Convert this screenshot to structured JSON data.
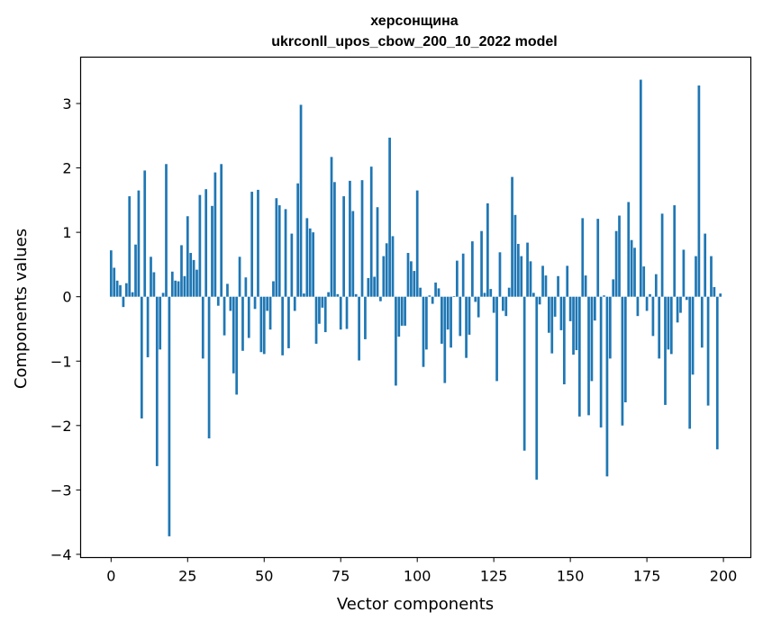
{
  "chart_data": {
    "type": "bar",
    "title": "херсонщина",
    "subtitle": "ukrconll_upos_cbow_200_10_2022 model",
    "xlabel": "Vector components",
    "ylabel": "Components values",
    "xlim": [
      -9.95,
      208.95
    ],
    "ylim": [
      -4.05,
      3.72
    ],
    "xticks": [
      0,
      25,
      50,
      75,
      100,
      125,
      150,
      175,
      200
    ],
    "yticks": [
      -4,
      -3,
      -2,
      -1,
      0,
      1,
      2,
      3
    ],
    "ytick_labels": [
      "−4",
      "−3",
      "−2",
      "−1",
      "0",
      "1",
      "2",
      "3"
    ],
    "grid": false,
    "bar_color": "#1f77b4",
    "values": [
      0.72,
      0.45,
      0.25,
      0.18,
      -0.16,
      0.21,
      1.56,
      0.07,
      0.81,
      1.65,
      -1.89,
      1.96,
      -0.94,
      0.62,
      0.38,
      -2.63,
      -0.82,
      0.06,
      2.06,
      -3.72,
      0.39,
      0.25,
      0.24,
      0.8,
      0.32,
      1.25,
      0.68,
      0.57,
      0.42,
      1.58,
      -0.96,
      1.67,
      -2.2,
      1.41,
      1.93,
      -0.14,
      2.06,
      -0.6,
      0.2,
      -0.22,
      -1.19,
      -1.52,
      0.62,
      -0.84,
      0.3,
      -0.64,
      1.63,
      -0.19,
      1.66,
      -0.86,
      -0.89,
      -0.22,
      -0.51,
      0.24,
      1.53,
      1.42,
      -0.91,
      1.36,
      -0.8,
      0.98,
      -0.22,
      1.76,
      2.98,
      0.05,
      1.22,
      1.06,
      1.0,
      -0.73,
      -0.42,
      -0.17,
      -0.55,
      0.07,
      2.17,
      1.78,
      0.04,
      -0.51,
      1.56,
      -0.5,
      1.8,
      1.33,
      0.04,
      -0.99,
      1.81,
      -0.66,
      0.29,
      2.02,
      0.31,
      1.39,
      -0.07,
      0.63,
      0.83,
      2.47,
      0.94,
      -1.38,
      -0.62,
      -0.45,
      -0.45,
      0.68,
      0.55,
      0.4,
      1.65,
      0.14,
      -1.09,
      -0.82,
      0.02,
      -0.11,
      0.22,
      0.13,
      -0.73,
      -1.34,
      -0.51,
      -0.79,
      0.01,
      0.56,
      -0.61,
      0.67,
      -0.95,
      -0.59,
      0.86,
      -0.08,
      -0.32,
      1.02,
      0.06,
      1.45,
      0.12,
      -0.25,
      -1.31,
      0.69,
      -0.22,
      -0.3,
      0.14,
      1.86,
      1.27,
      0.82,
      0.63,
      -2.39,
      0.84,
      0.55,
      0.06,
      -2.84,
      -0.12,
      0.48,
      0.33,
      -0.56,
      -0.88,
      -0.31,
      0.32,
      -0.52,
      -1.36,
      0.48,
      -0.38,
      -0.9,
      -0.83,
      -1.86,
      1.22,
      0.33,
      -1.84,
      -1.31,
      -0.37,
      1.21,
      -2.03,
      0.02,
      -2.79,
      -0.96,
      0.27,
      1.02,
      1.26,
      -2.0,
      -1.64,
      1.47,
      0.88,
      0.76,
      -0.3,
      3.37,
      0.47,
      -0.22,
      0.04,
      -0.61,
      0.35,
      -0.96,
      1.29,
      -1.68,
      -0.82,
      -0.89,
      1.42,
      -0.4,
      -0.25,
      0.73,
      -0.05,
      -2.05,
      -1.21,
      0.63,
      3.28,
      -0.79,
      0.98,
      -1.69,
      0.63,
      0.15,
      -2.37,
      0.05
    ]
  }
}
